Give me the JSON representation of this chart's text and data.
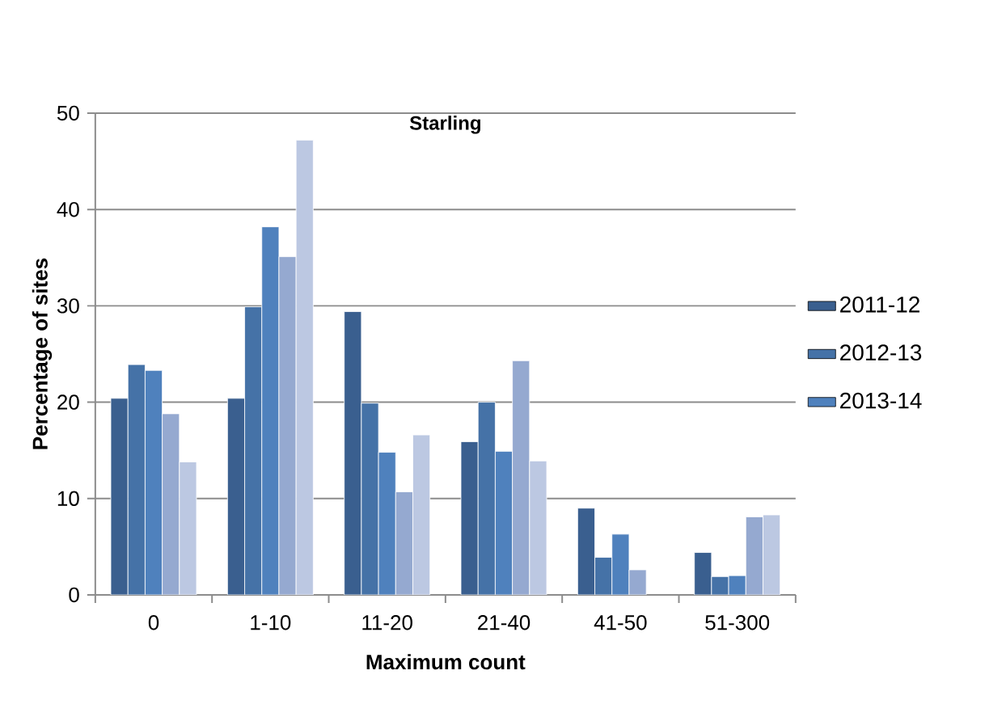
{
  "chart_data": {
    "type": "bar",
    "title": "Starling",
    "xlabel": "Maximum count",
    "ylabel": "Percentage of sites",
    "categories": [
      "0",
      "1-10",
      "11-20",
      "21-40",
      "41-50",
      "51-300"
    ],
    "series": [
      {
        "name": "2011-12",
        "color": "#3a5f8f",
        "values": [
          20.4,
          20.4,
          29.4,
          15.9,
          9.0,
          4.4
        ]
      },
      {
        "name": "2012-13",
        "color": "#4572a7",
        "values": [
          23.9,
          29.9,
          19.9,
          20.0,
          3.9,
          1.9
        ]
      },
      {
        "name": "2013-14",
        "color": "#4f81bd",
        "values": [
          23.3,
          38.2,
          14.8,
          14.9,
          6.3,
          2.0
        ]
      },
      {
        "color": "#95a9d0",
        "values": [
          18.8,
          35.1,
          10.7,
          24.3,
          2.6,
          8.1
        ]
      },
      {
        "color": "#bcc8e2",
        "values": [
          13.8,
          47.2,
          16.6,
          13.9,
          null,
          8.3
        ]
      }
    ],
    "ylim": [
      0,
      50
    ],
    "yticks": [
      0,
      10,
      20,
      30,
      40,
      50
    ],
    "grid": "y",
    "legend": "right"
  }
}
